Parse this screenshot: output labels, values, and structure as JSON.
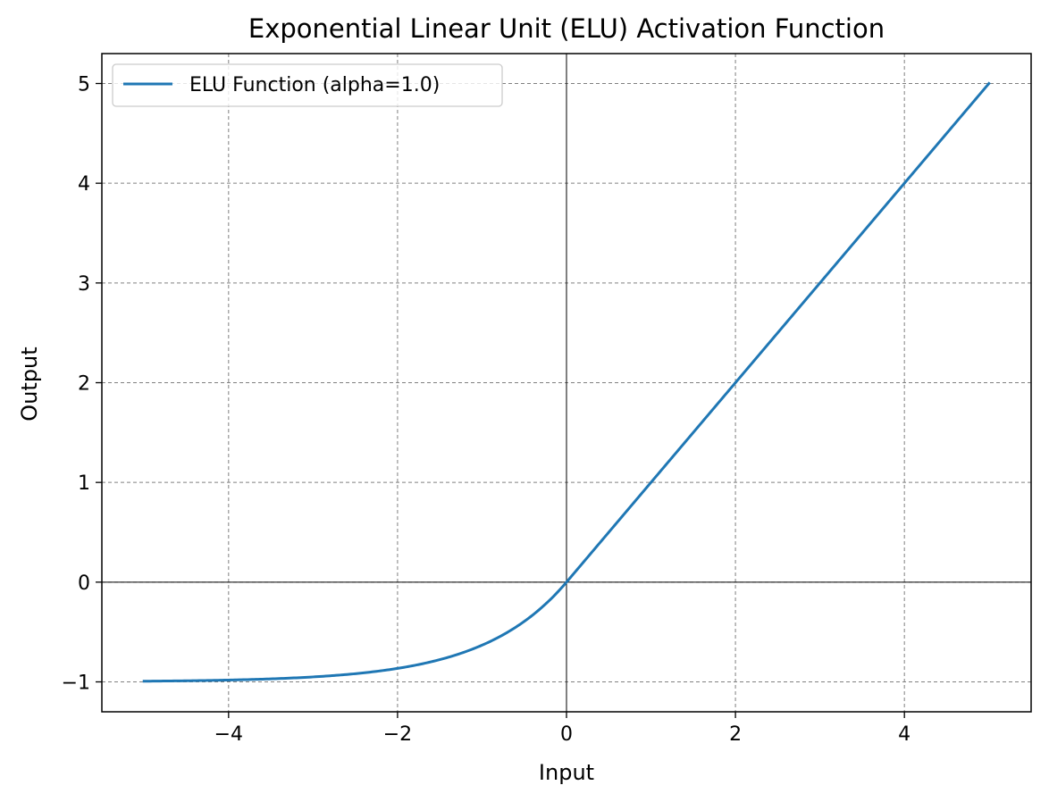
{
  "chart_data": {
    "type": "line",
    "title": "Exponential Linear Unit (ELU) Activation Function",
    "xlabel": "Input",
    "ylabel": "Output",
    "xlim": [
      -5.5,
      5.5
    ],
    "ylim": [
      -1.3,
      5.3
    ],
    "grid": true,
    "legend_position": "top-left",
    "x_ticks": [
      -4,
      -2,
      0,
      2,
      4
    ],
    "x_tick_labels": [
      "−4",
      "−2",
      "0",
      "2",
      "4"
    ],
    "y_ticks": [
      -1,
      0,
      1,
      2,
      3,
      4,
      5
    ],
    "y_tick_labels": [
      "−1",
      "0",
      "1",
      "2",
      "3",
      "4",
      "5"
    ],
    "series": [
      {
        "name": "ELU Function (alpha=1.0)",
        "color": "#1f77b4",
        "alpha": 1.0,
        "x": [
          -5,
          -4.5,
          -4,
          -3.5,
          -3,
          -2.5,
          -2,
          -1.75,
          -1.5,
          -1.25,
          -1,
          -0.75,
          -0.5,
          -0.25,
          0,
          1,
          2,
          3,
          4,
          5
        ],
        "y": [
          -0.993,
          -0.989,
          -0.982,
          -0.97,
          -0.95,
          -0.918,
          -0.865,
          -0.826,
          -0.777,
          -0.713,
          -0.632,
          -0.528,
          -0.393,
          -0.221,
          0,
          1,
          2,
          3,
          4,
          5
        ]
      }
    ]
  }
}
